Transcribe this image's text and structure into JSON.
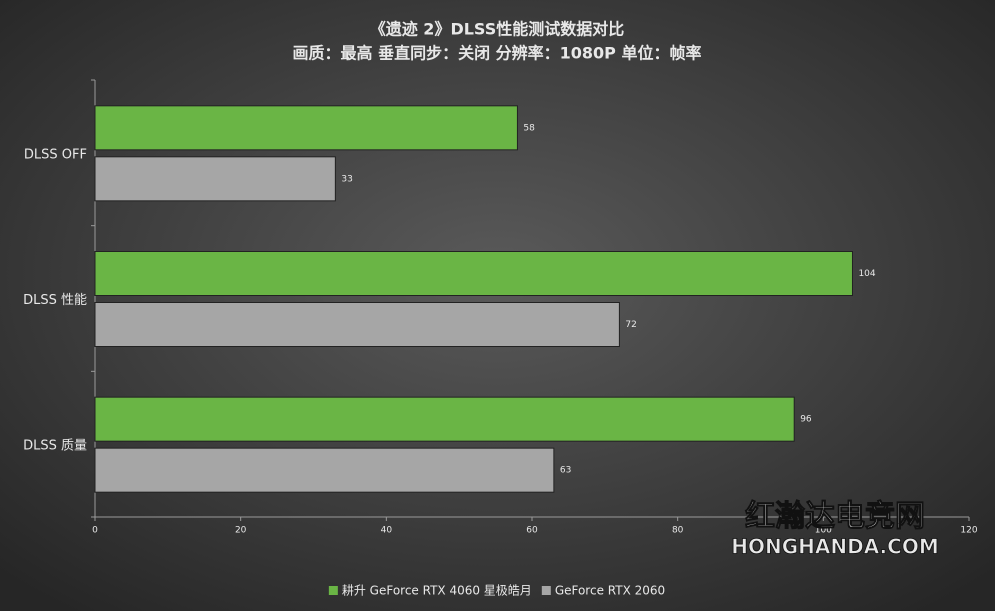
{
  "chart_data": {
    "type": "hbar",
    "title": "《遗迹 2》DLSS性能测试数据对比",
    "subtitle": "画质：最高 垂直同步：关闭 分辨率：1080P 单位：帧率",
    "categories": [
      "DLSS OFF",
      "DLSS 性能",
      "DLSS 质量"
    ],
    "series": [
      {
        "name": "耕升 GeForce RTX 4060 星极皓月",
        "color": "#6ab545",
        "values": [
          58,
          104,
          96
        ]
      },
      {
        "name": "GeForce RTX 2060",
        "color": "#a6a6a6",
        "values": [
          33,
          72,
          63
        ]
      }
    ],
    "xlim": [
      0,
      120
    ],
    "xticks": [
      0,
      20,
      40,
      60,
      80,
      100,
      120
    ],
    "legend": "bottom",
    "watermark": {
      "name": "红瀚达电竞网",
      "url": "HONGHANDA.COM"
    }
  }
}
